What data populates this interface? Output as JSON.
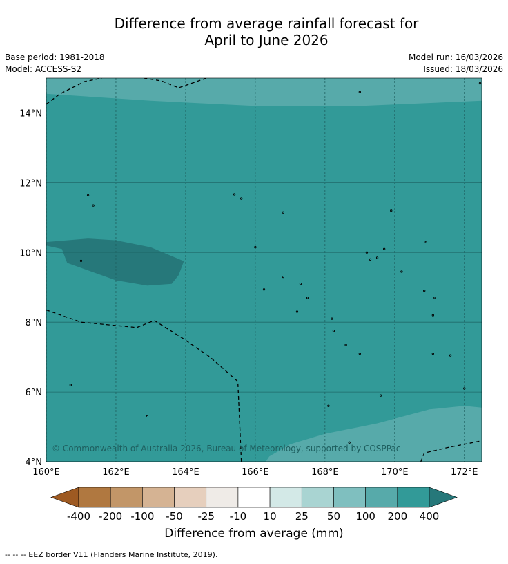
{
  "title_line1": "Difference from average rainfall forecast for",
  "title_line2": "April to June 2026",
  "meta_left": [
    "Base period: 1981-2018",
    "Model: ACCESS-S2"
  ],
  "meta_right": [
    "Model run: 16/03/2026",
    "Issued: 18/03/2026"
  ],
  "map": {
    "lon_min": 160,
    "lon_max": 172.5,
    "lat_min": 4,
    "lat_max": 15,
    "x_ticks": [
      {
        "value": 160,
        "label": "160°E"
      },
      {
        "value": 162,
        "label": "162°E"
      },
      {
        "value": 164,
        "label": "164°E"
      },
      {
        "value": 166,
        "label": "166°E"
      },
      {
        "value": 168,
        "label": "168°E"
      },
      {
        "value": 170,
        "label": "170°E"
      },
      {
        "value": 172,
        "label": "172°E"
      }
    ],
    "y_ticks": [
      {
        "value": 14,
        "label": "14°N"
      },
      {
        "value": 12,
        "label": "12°N"
      },
      {
        "value": 10,
        "label": "10°N"
      },
      {
        "value": 8,
        "label": "8°N"
      },
      {
        "value": 6,
        "label": "6°N"
      },
      {
        "value": 4,
        "label": "4°N"
      }
    ],
    "copyright": "© Commonwealth of Australia 2026, Bureau of Meteorology, supported by COSPPac",
    "base_category": "200 to 400 mm",
    "colors": {
      "c_100_200": "#57aaaa",
      "c_200_400": "#329a98",
      "c_gt_400": "#26787a"
    },
    "regions": [
      {
        "category": "100 to 200",
        "color": "#57aaaa",
        "points": [
          [
            160,
            15
          ],
          [
            160,
            14.55
          ],
          [
            163,
            14.35
          ],
          [
            166,
            14.2
          ],
          [
            169,
            14.2
          ],
          [
            172.5,
            14.35
          ],
          [
            172.5,
            15
          ]
        ]
      },
      {
        "category": "400+",
        "color": "#26787a",
        "points": [
          [
            160,
            10.3
          ],
          [
            161.2,
            10.4
          ],
          [
            162,
            10.35
          ],
          [
            163,
            10.15
          ],
          [
            163.95,
            9.75
          ],
          [
            163.8,
            9.35
          ],
          [
            163.6,
            9.1
          ],
          [
            162.9,
            9.05
          ],
          [
            162,
            9.2
          ],
          [
            160.6,
            9.7
          ],
          [
            160.45,
            10.1
          ],
          [
            160,
            10.2
          ]
        ]
      },
      {
        "category": "100 to 200",
        "color": "#57aaaa",
        "points": [
          [
            166.3,
            4
          ],
          [
            166.4,
            4.15
          ],
          [
            167,
            4.5
          ],
          [
            168,
            4.8
          ],
          [
            169.5,
            5.1
          ],
          [
            171,
            5.5
          ],
          [
            172,
            5.6
          ],
          [
            172.5,
            5.55
          ],
          [
            172.5,
            4
          ]
        ]
      }
    ],
    "eez_borders": [
      [
        [
          160,
          14.25
        ],
        [
          160.4,
          14.55
        ],
        [
          161.1,
          14.9
        ],
        [
          161.6,
          15
        ]
      ],
      [
        [
          162.8,
          15
        ],
        [
          163.3,
          14.92
        ],
        [
          163.8,
          14.72
        ],
        [
          164.6,
          15
        ]
      ],
      [
        [
          160,
          8.35
        ],
        [
          161,
          8
        ],
        [
          162.6,
          7.85
        ],
        [
          163.1,
          8.05
        ],
        [
          163.9,
          7.55
        ],
        [
          164.7,
          7
        ],
        [
          165.5,
          6.3
        ],
        [
          165.6,
          4
        ]
      ],
      [
        [
          170.75,
          4
        ],
        [
          170.85,
          4.25
        ],
        [
          171.5,
          4.4
        ],
        [
          172.5,
          4.6
        ]
      ]
    ]
  },
  "colorbar": {
    "title": "Difference from average (mm)",
    "colors": [
      "#9e5a22",
      "#b07840",
      "#c29668",
      "#d5b393",
      "#e6cfbd",
      "#efebe7",
      "#ffffff",
      "#d3e9e7",
      "#a9d4d2",
      "#7fbfbf",
      "#57aaaa",
      "#329a98",
      "#26787a"
    ],
    "tick_labels": [
      "-400",
      "-200",
      "-100",
      "-50",
      "-25",
      "-10",
      "10",
      "25",
      "50",
      "100",
      "200",
      "400"
    ]
  },
  "footnote": "--  --  -- EEZ border V11 (Flanders Marine Institute, 2019)."
}
